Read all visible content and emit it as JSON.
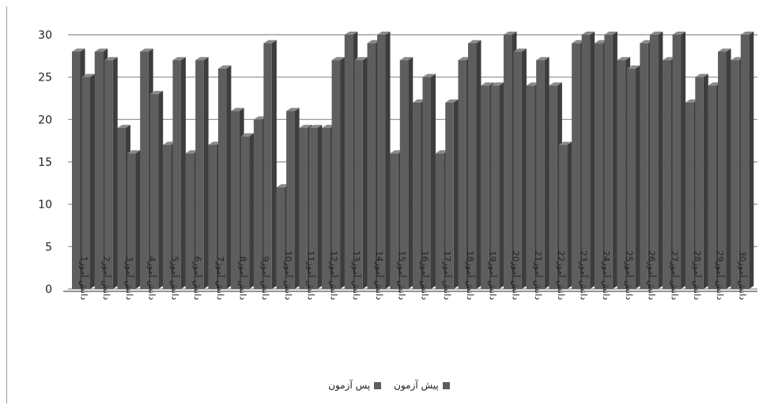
{
  "chart_data": {
    "type": "bar",
    "categories": [
      "دانش آموز1",
      "دانش آموز2",
      "دانش آموز3",
      "دانش آموز4",
      "دانش آموز5",
      "دانش آموز6",
      "دانش آموز7",
      "دانش آموز8",
      "دانش آموز9",
      "دانش آموز10",
      "دانش آموز11",
      "دانش آموز12",
      "دانش آموز13",
      "دانش آموز14",
      "دانش آموز15",
      "دانش آموز16",
      "دانش آموز17",
      "دانش آموز18",
      "دانش آموز19",
      "دانش آموز20",
      "دانش آموز21",
      "دانش آموز22",
      "دانش آموز23",
      "دانش آموز24",
      "دانش آموز25",
      "دانش آموز26",
      "دانش آموز27",
      "دانش آموز28",
      "دانش آموز29",
      "دانش آموز30"
    ],
    "series": [
      {
        "name": "پیش آزمون",
        "values": [
          28,
          28,
          19,
          28,
          17,
          16,
          17,
          21,
          20,
          12,
          19,
          19,
          30,
          29,
          16,
          22,
          16,
          27,
          24,
          30,
          24,
          24,
          29,
          29,
          27,
          29,
          27,
          22,
          24,
          27
        ]
      },
      {
        "name": "پس آزمون",
        "values": [
          25,
          27,
          16,
          23,
          27,
          27,
          26,
          18,
          29,
          21,
          19,
          27,
          27,
          30,
          27,
          25,
          22,
          29,
          24,
          28,
          27,
          17,
          30,
          30,
          26,
          30,
          30,
          25,
          28,
          30
        ]
      }
    ],
    "ylim": [
      0,
      30
    ],
    "yticks": [
      0,
      5,
      10,
      15,
      20,
      25,
      30
    ],
    "grid": true,
    "legend_position": "bottom",
    "colors": {
      "bar_front": "#5e5e5e",
      "bar_side": "#3d3d3d",
      "bar_top": "#8a8a8a",
      "gridline": "#8c8c8c"
    }
  }
}
